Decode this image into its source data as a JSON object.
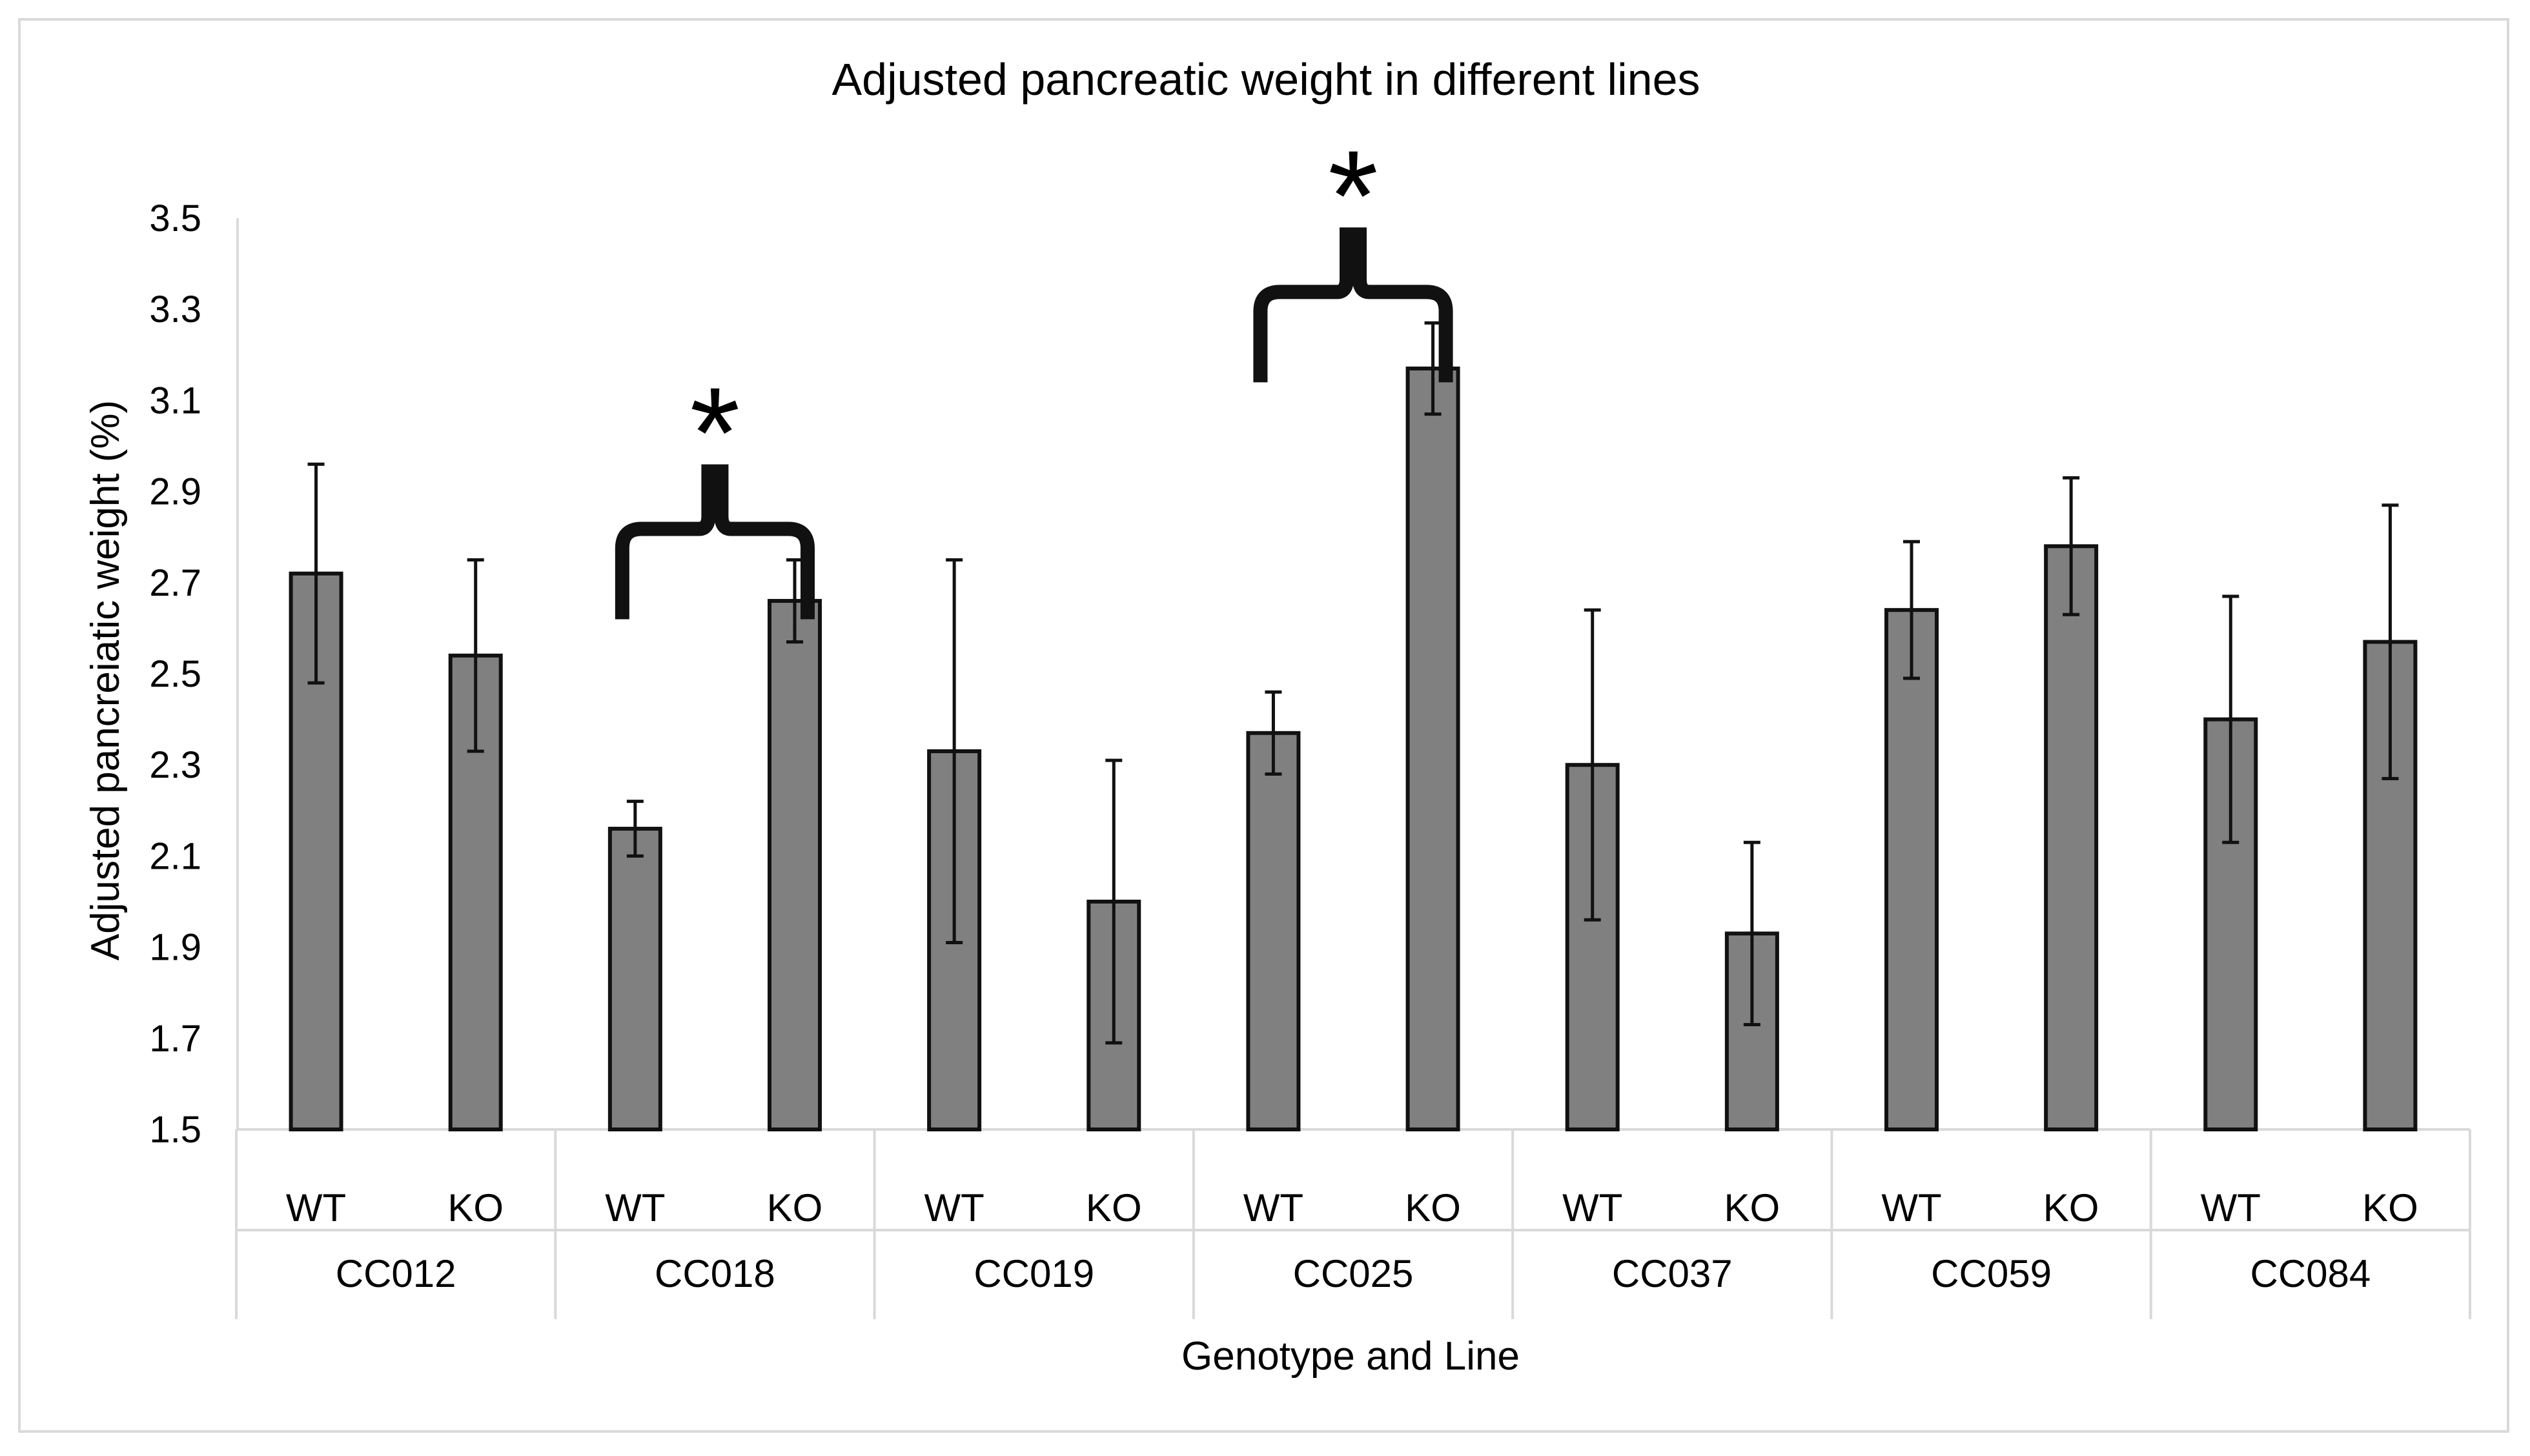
{
  "chart_data": {
    "type": "bar",
    "title": "Adjusted pancreatic weight in different lines",
    "xlabel": "Genotype and Line",
    "ylabel": "Adjusted pancreiatic weight (%)",
    "ylim": [
      1.5,
      3.5
    ],
    "yticks": [
      "1.5",
      "1.7",
      "1.9",
      "2.1",
      "2.3",
      "2.5",
      "2.7",
      "2.9",
      "3.1",
      "3.3",
      "3.5"
    ],
    "grid": false,
    "bar_color": "#808080",
    "groups": [
      "CC012",
      "CC018",
      "CC019",
      "CC025",
      "CC037",
      "CC059",
      "CC084"
    ],
    "subcategories": [
      "WT",
      "KO"
    ],
    "bars": [
      {
        "group": "CC012",
        "genotype": "WT",
        "value": 2.72,
        "error": 0.24
      },
      {
        "group": "CC012",
        "genotype": "KO",
        "value": 2.54,
        "error": 0.21
      },
      {
        "group": "CC018",
        "genotype": "WT",
        "value": 2.16,
        "error": 0.06
      },
      {
        "group": "CC018",
        "genotype": "KO",
        "value": 2.66,
        "error": 0.09
      },
      {
        "group": "CC019",
        "genotype": "WT",
        "value": 2.33,
        "error": 0.42
      },
      {
        "group": "CC019",
        "genotype": "KO",
        "value": 2.0,
        "error": 0.31
      },
      {
        "group": "CC025",
        "genotype": "WT",
        "value": 2.37,
        "error": 0.09
      },
      {
        "group": "CC025",
        "genotype": "KO",
        "value": 3.17,
        "error": 0.1
      },
      {
        "group": "CC037",
        "genotype": "WT",
        "value": 2.3,
        "error": 0.34
      },
      {
        "group": "CC037",
        "genotype": "KO",
        "value": 1.93,
        "error": 0.2
      },
      {
        "group": "CC059",
        "genotype": "WT",
        "value": 2.64,
        "error": 0.15
      },
      {
        "group": "CC059",
        "genotype": "KO",
        "value": 2.78,
        "error": 0.15
      },
      {
        "group": "CC084",
        "genotype": "WT",
        "value": 2.4,
        "error": 0.27
      },
      {
        "group": "CC084",
        "genotype": "KO",
        "value": 2.57,
        "error": 0.3
      }
    ],
    "annotations": [
      {
        "group": "CC018",
        "label": "*"
      },
      {
        "group": "CC025",
        "label": "*"
      }
    ]
  }
}
